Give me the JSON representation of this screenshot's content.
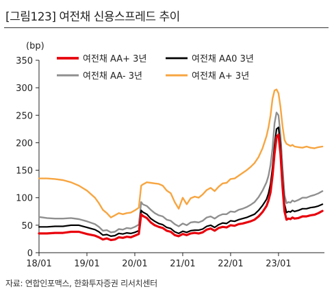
{
  "header": {
    "title": "[그림123] 여전채 신용스프레드 추이"
  },
  "footer": {
    "source": "자료: 연합인포맥스, 한화투자증권 리서치센터"
  },
  "chart_data": {
    "type": "line",
    "unit": "(bp)",
    "ylim": [
      0,
      350
    ],
    "yticks": [
      0,
      50,
      100,
      150,
      200,
      250,
      300,
      350
    ],
    "xticks": [
      {
        "label": "18/01",
        "t": 0
      },
      {
        "label": "19/01",
        "t": 12
      },
      {
        "label": "20/01",
        "t": 24
      },
      {
        "label": "21/01",
        "t": 36
      },
      {
        "label": "22/01",
        "t": 48
      },
      {
        "label": "23/01",
        "t": 60
      }
    ],
    "xlim": [
      0,
      71.5
    ],
    "grid": false,
    "legend": "top",
    "series": [
      {
        "name": "여전채 AA+ 3년",
        "color": "#e8000b",
        "stroke_width": 3.2,
        "t": [
          0,
          2,
          4,
          6,
          8,
          10,
          12,
          14,
          15,
          16,
          17,
          18,
          19,
          20,
          21,
          22,
          23,
          24,
          25,
          25.6,
          26,
          27,
          28,
          29,
          30,
          31,
          32,
          33,
          34,
          35,
          36,
          37,
          38,
          39,
          40,
          41,
          42,
          43,
          44,
          45,
          46,
          47,
          48,
          49,
          50,
          51,
          52,
          53,
          54,
          55,
          56,
          57,
          57.5,
          58,
          58.5,
          59,
          59.5,
          60,
          60.5,
          61,
          61.5,
          62,
          62.5,
          63,
          63.5,
          64,
          65,
          66,
          67,
          68,
          69,
          70,
          71
        ],
        "values": [
          35,
          35,
          36,
          36,
          38,
          38,
          34,
          31,
          28,
          24,
          26,
          23,
          24,
          28,
          27,
          29,
          28,
          31,
          34,
          70,
          67,
          63,
          55,
          50,
          47,
          45,
          40,
          38,
          32,
          30,
          34,
          32,
          35,
          36,
          35,
          37,
          42,
          44,
          40,
          45,
          47,
          46,
          50,
          49,
          52,
          53,
          55,
          57,
          60,
          66,
          74,
          85,
          95,
          110,
          140,
          180,
          210,
          215,
          180,
          120,
          75,
          60,
          62,
          61,
          64,
          62,
          63,
          66,
          66,
          68,
          69,
          72,
          76
        ]
      },
      {
        "name": "여전채 AA0 3년",
        "color": "#000000",
        "stroke_width": 2.2,
        "t": [
          0,
          2,
          4,
          6,
          8,
          10,
          12,
          14,
          15,
          16,
          17,
          18,
          19,
          20,
          21,
          22,
          23,
          24,
          25,
          25.6,
          26,
          27,
          28,
          29,
          30,
          31,
          32,
          33,
          34,
          35,
          36,
          37,
          38,
          39,
          40,
          41,
          42,
          43,
          44,
          45,
          46,
          47,
          48,
          49,
          50,
          51,
          52,
          53,
          54,
          55,
          56,
          57,
          57.5,
          58,
          58.5,
          59,
          59.5,
          60,
          60.5,
          61,
          61.5,
          62,
          62.5,
          63,
          63.5,
          64,
          65,
          66,
          67,
          68,
          69,
          70,
          71
        ],
        "values": [
          47,
          47,
          48,
          48,
          50,
          50,
          46,
          42,
          38,
          32,
          33,
          30,
          31,
          35,
          34,
          36,
          35,
          37,
          40,
          77,
          74,
          70,
          62,
          57,
          53,
          51,
          46,
          44,
          38,
          35,
          39,
          37,
          40,
          41,
          41,
          43,
          48,
          50,
          46,
          51,
          54,
          53,
          58,
          57,
          60,
          62,
          64,
          67,
          70,
          77,
          86,
          97,
          108,
          125,
          155,
          195,
          225,
          228,
          195,
          135,
          88,
          73,
          75,
          74,
          77,
          75,
          77,
          80,
          80,
          82,
          83,
          85,
          88
        ]
      },
      {
        "name": "여전채 AA- 3년",
        "color": "#8f8f8f",
        "stroke_width": 2.4,
        "t": [
          0,
          2,
          4,
          6,
          8,
          10,
          12,
          14,
          15,
          16,
          17,
          18,
          19,
          20,
          21,
          22,
          23,
          24,
          25,
          25.6,
          26,
          27,
          28,
          29,
          30,
          31,
          32,
          33,
          34,
          35,
          36,
          37,
          38,
          39,
          40,
          41,
          42,
          43,
          44,
          45,
          46,
          47,
          48,
          49,
          50,
          51,
          52,
          53,
          54,
          55,
          56,
          57,
          57.5,
          58,
          58.5,
          59,
          59.5,
          60,
          60.5,
          61,
          61.5,
          62,
          62.5,
          63,
          63.5,
          64,
          65,
          66,
          67,
          68,
          69,
          70,
          71
        ],
        "values": [
          65,
          63,
          62,
          62,
          63,
          61,
          57,
          52,
          47,
          40,
          41,
          37,
          38,
          43,
          42,
          45,
          44,
          47,
          51,
          92,
          88,
          85,
          78,
          72,
          68,
          66,
          60,
          58,
          52,
          48,
          53,
          50,
          55,
          56,
          55,
          58,
          64,
          66,
          62,
          67,
          70,
          70,
          75,
          74,
          78,
          80,
          83,
          87,
          92,
          101,
          113,
          128,
          140,
          160,
          190,
          235,
          255,
          250,
          215,
          155,
          105,
          90,
          92,
          91,
          95,
          93,
          96,
          100,
          100,
          103,
          105,
          108,
          112
        ]
      },
      {
        "name": "여전채 A+ 3년",
        "color": "#f7a540",
        "stroke_width": 2.4,
        "t": [
          0,
          2,
          4,
          6,
          8,
          10,
          12,
          14,
          15,
          16,
          17,
          18,
          19,
          20,
          21,
          22,
          23,
          24,
          25,
          25.6,
          26,
          27,
          28,
          29,
          30,
          31,
          32,
          33,
          34,
          35,
          36,
          37,
          38,
          39,
          40,
          41,
          42,
          43,
          44,
          45,
          46,
          47,
          48,
          49,
          50,
          51,
          52,
          53,
          54,
          55,
          56,
          57,
          57.5,
          58,
          58.5,
          59,
          59.5,
          60,
          60.5,
          61,
          61.5,
          62,
          62.5,
          63,
          63.5,
          64,
          65,
          66,
          67,
          68,
          69,
          70,
          71
        ],
        "values": [
          135,
          135,
          134,
          132,
          128,
          122,
          113,
          100,
          90,
          78,
          72,
          64,
          68,
          72,
          70,
          72,
          73,
          77,
          82,
          122,
          124,
          128,
          127,
          126,
          125,
          122,
          113,
          108,
          92,
          80,
          100,
          88,
          99,
          102,
          100,
          106,
          114,
          118,
          112,
          120,
          126,
          127,
          134,
          135,
          140,
          145,
          150,
          156,
          163,
          174,
          190,
          212,
          228,
          250,
          280,
          295,
          297,
          290,
          265,
          230,
          205,
          198,
          196,
          194,
          196,
          193,
          192,
          191,
          193,
          191,
          190,
          192,
          193
        ]
      }
    ]
  }
}
